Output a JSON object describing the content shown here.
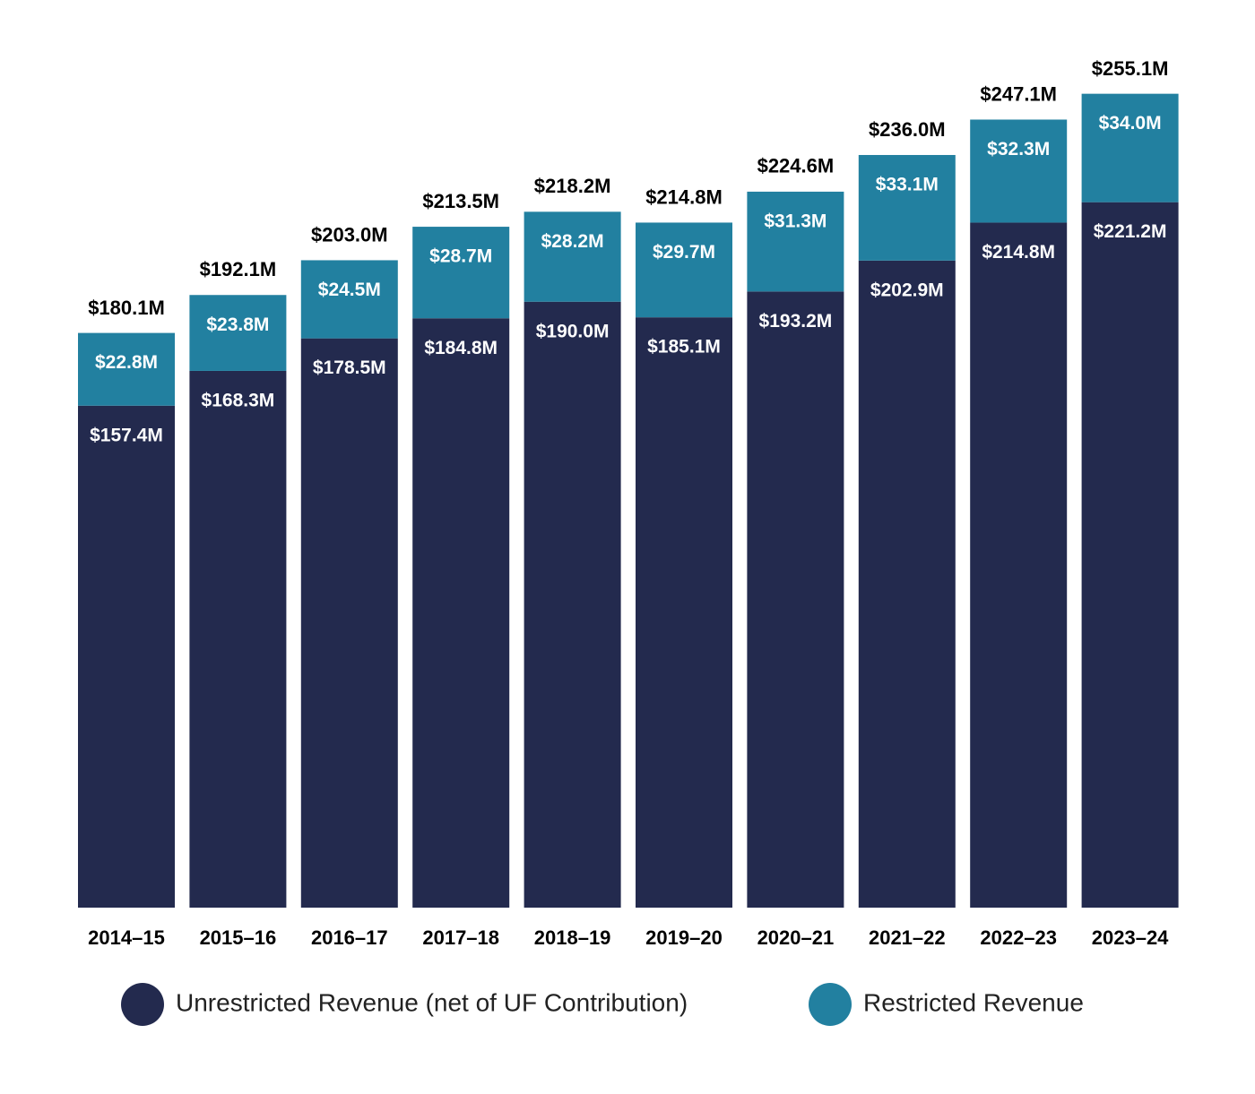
{
  "chart_data": {
    "type": "stacked-bar",
    "categories": [
      "2014–15",
      "2015–16",
      "2016–17",
      "2017–18",
      "2018–19",
      "2019–20",
      "2020–21",
      "2021–22",
      "2022–23",
      "2023–24"
    ],
    "series": [
      {
        "name": "Unrestricted Revenue (net of UF Contribution)",
        "color": "#232a4e",
        "values": [
          157.4,
          168.3,
          178.5,
          184.8,
          190.0,
          185.1,
          193.2,
          202.9,
          214.8,
          221.2
        ],
        "value_labels": [
          "$157.4M",
          "$168.3M",
          "$178.5M",
          "$184.8M",
          "$190.0M",
          "$185.1M",
          "$193.2M",
          "$202.9M",
          "$214.8M",
          "$221.2M"
        ]
      },
      {
        "name": "Restricted Revenue",
        "color": "#2280a0",
        "values": [
          22.8,
          23.8,
          24.5,
          28.7,
          28.2,
          29.7,
          31.3,
          33.1,
          32.3,
          34.0
        ],
        "value_labels": [
          "$22.8M",
          "$23.8M",
          "$24.5M",
          "$28.7M",
          "$28.2M",
          "$29.7M",
          "$31.3M",
          "$33.1M",
          "$32.3M",
          "$34.0M"
        ]
      }
    ],
    "totals": {
      "values": [
        180.1,
        192.1,
        203.0,
        213.5,
        218.2,
        214.8,
        224.6,
        236.0,
        247.1,
        255.1
      ],
      "value_labels": [
        "$180.1M",
        "$192.1M",
        "$203.0M",
        "$213.5M",
        "$218.2M",
        "$214.8M",
        "$224.6M",
        "$236.0M",
        "$247.1M",
        "$255.1M"
      ]
    }
  }
}
